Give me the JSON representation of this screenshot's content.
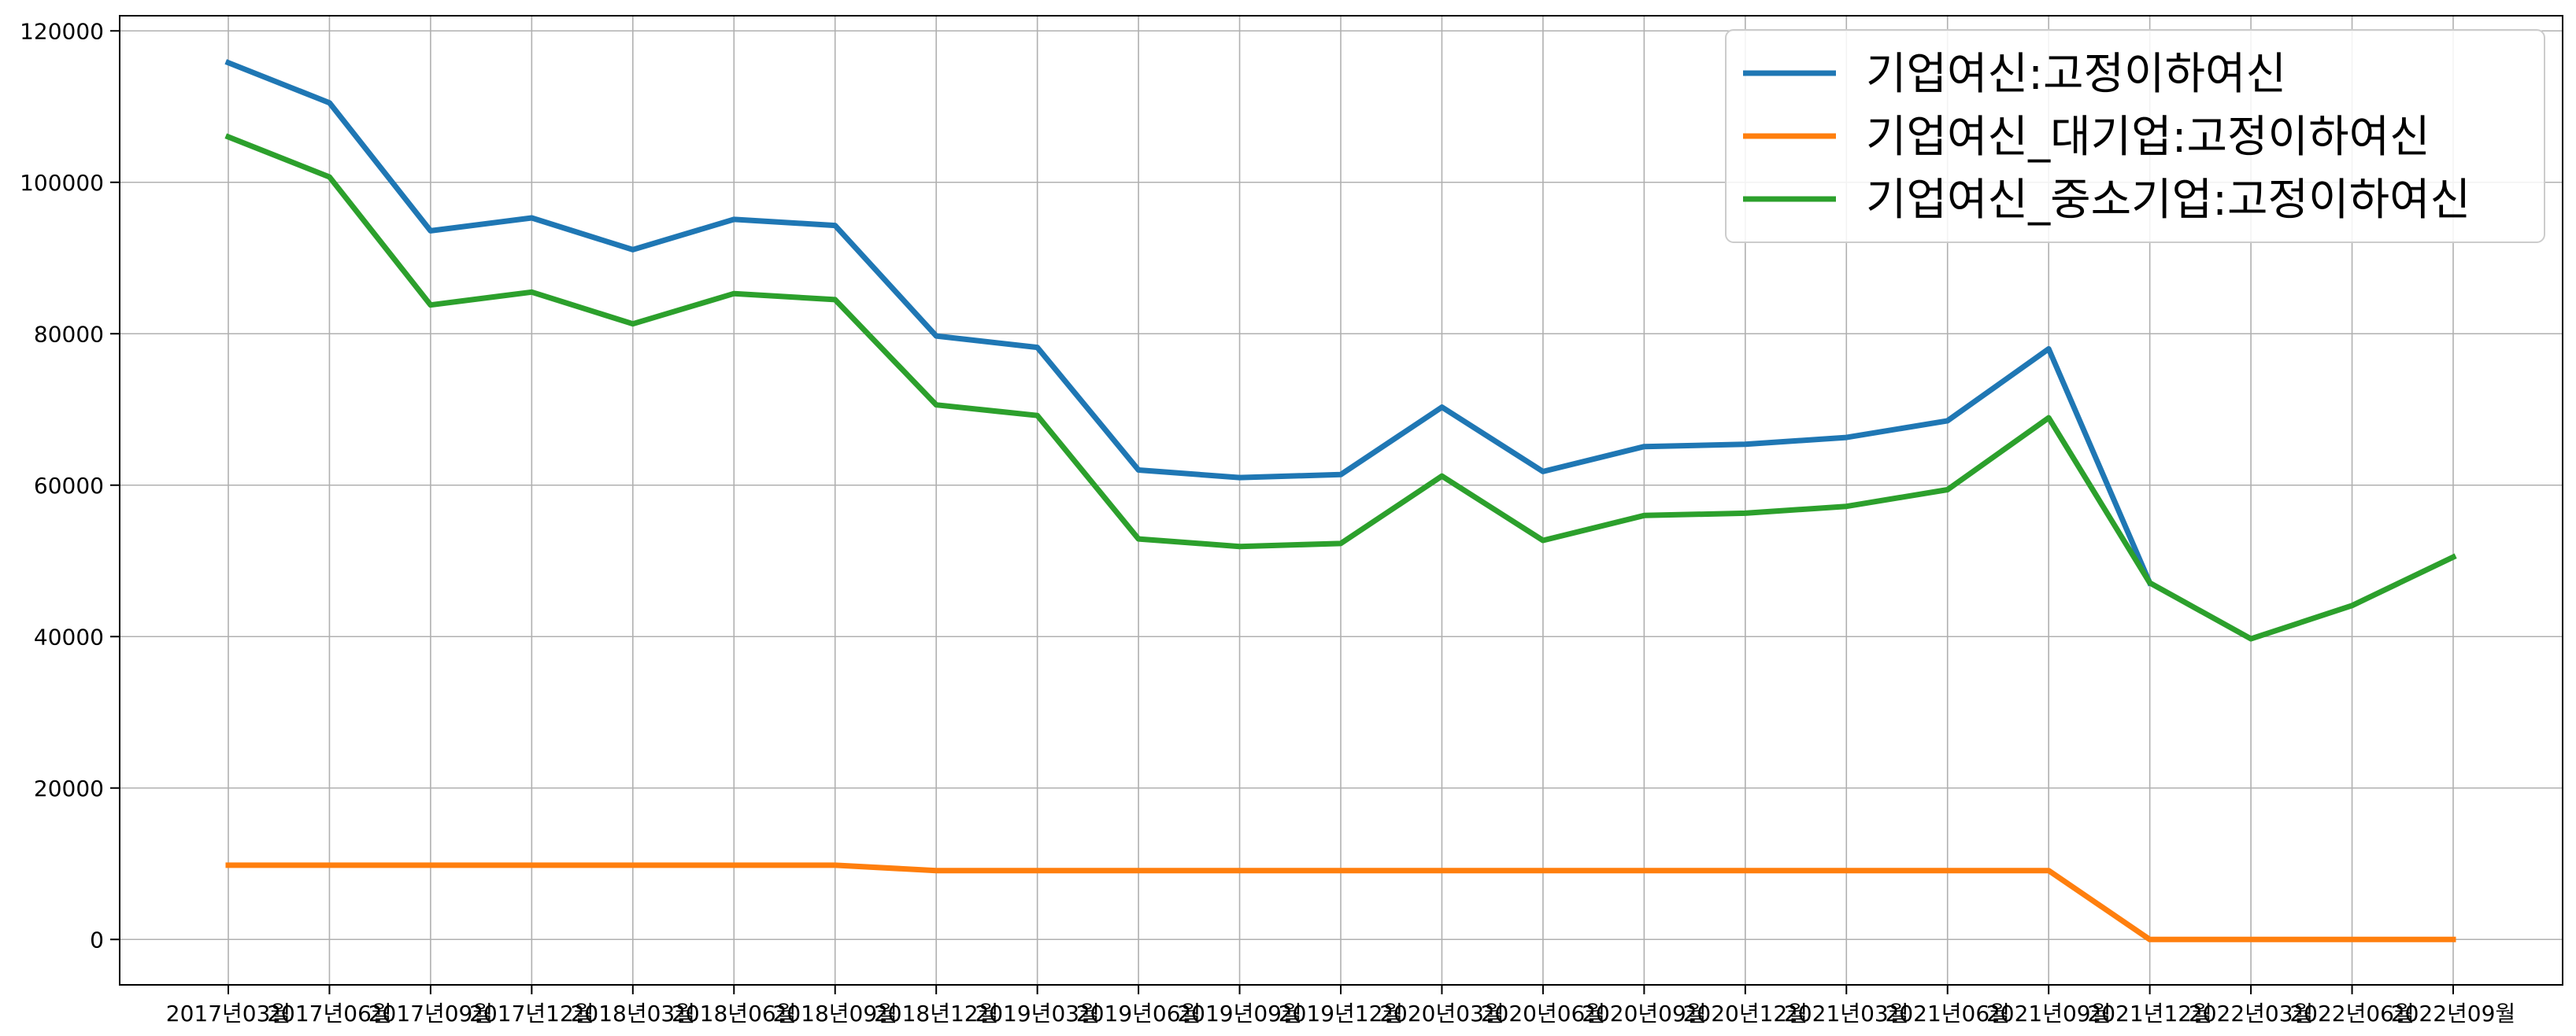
{
  "chart_data": {
    "type": "line",
    "title": "",
    "xlabel": "",
    "ylabel": "",
    "categories": [
      "2017년03월",
      "2017년06월",
      "2017년09월",
      "2017년12월",
      "2018년03월",
      "2018년06월",
      "2018년09월",
      "2018년12월",
      "2019년03월",
      "2019년06월",
      "2019년09월",
      "2019년12월",
      "2020년03월",
      "2020년06월",
      "2020년09월",
      "2020년12월",
      "2021년03월",
      "2021년06월",
      "2021년09월",
      "2021년12월",
      "2022년03월",
      "2022년06월",
      "2022년09월"
    ],
    "ylim": [
      -6000,
      122000
    ],
    "yticks": [
      0,
      20000,
      40000,
      60000,
      80000,
      100000,
      120000
    ],
    "ytick_labels": [
      "0",
      "20000",
      "40000",
      "60000",
      "80000",
      "100000",
      "120000"
    ],
    "grid": true,
    "legend_position": "top-right",
    "series": [
      {
        "name": "기업여신:고정이하여신",
        "color": "#1f77b4",
        "values": [
          115800,
          110500,
          93600,
          95300,
          91100,
          95100,
          94300,
          79700,
          78200,
          62000,
          61000,
          61400,
          70300,
          61800,
          65100,
          65400,
          66300,
          68500,
          78000,
          47100,
          null,
          null,
          null
        ]
      },
      {
        "name": "기업여신_대기업:고정이하여신",
        "color": "#ff7f0e",
        "values": [
          9800,
          9800,
          9800,
          9800,
          9800,
          9800,
          9800,
          9100,
          9100,
          9100,
          9100,
          9100,
          9100,
          9100,
          9100,
          9100,
          9100,
          9100,
          9100,
          0,
          0,
          0,
          0
        ]
      },
      {
        "name": "기업여신_중소기업:고정이하여신",
        "color": "#2ca02c",
        "values": [
          106000,
          100700,
          83800,
          85500,
          81300,
          85300,
          84500,
          70600,
          69200,
          52900,
          51900,
          52300,
          61200,
          52700,
          56000,
          56300,
          57200,
          59400,
          68900,
          47100,
          39700,
          44100,
          50500
        ]
      }
    ]
  }
}
